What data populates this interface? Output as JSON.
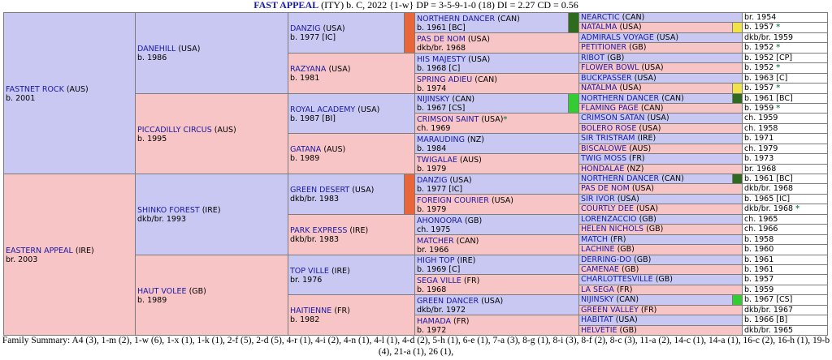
{
  "header": {
    "name": "FAST APPEAL",
    "rest": " (ITY) b. C, 2022 {1-w} DP = 3-5-9-1-0 (18) DI = 2.27   CD = 0.56"
  },
  "gen1": [
    {
      "name": "FASTNET ROCK",
      "country": "(AUS)",
      "info": "b. 2001",
      "sex": "m"
    },
    {
      "name": "EASTERN APPEAL",
      "country": "(IRE)",
      "info": "br. 2003",
      "sex": "f"
    }
  ],
  "gen2": [
    {
      "name": "DANEHILL",
      "country": "(USA)",
      "info": "b. 1986",
      "sex": "m"
    },
    {
      "name": "PICCADILLY CIRCUS",
      "country": "(AUS)",
      "info": "b. 1995",
      "sex": "f"
    },
    {
      "name": "SHINKO FOREST",
      "country": "(IRE)",
      "info": "dkb/br. 1993",
      "sex": "m"
    },
    {
      "name": "HAUT VOLEE",
      "country": "(GB)",
      "info": "b. 1989",
      "sex": "f"
    }
  ],
  "gen3": [
    {
      "name": "DANZIG",
      "country": "(USA)",
      "info": "b. 1977 [IC]",
      "sex": "m"
    },
    {
      "name": "RAZYANA",
      "country": "(USA)",
      "info": "b. 1981",
      "sex": "f"
    },
    {
      "name": "ROYAL ACADEMY",
      "country": "(USA)",
      "info": "b. 1987 [BI]",
      "sex": "m"
    },
    {
      "name": "GATANA",
      "country": "(AUS)",
      "info": "b. 1989",
      "sex": "f"
    },
    {
      "name": "GREEN DESERT",
      "country": "(USA)",
      "info": "dkb/br. 1983",
      "sex": "m"
    },
    {
      "name": "PARK EXPRESS",
      "country": "(IRE)",
      "info": "dkb/br. 1983",
      "sex": "f"
    },
    {
      "name": "TOP VILLE",
      "country": "(IRE)",
      "info": "br. 1976",
      "sex": "m"
    },
    {
      "name": "HAITIENNE",
      "country": "(FR)",
      "info": "b. 1982",
      "sex": "f"
    }
  ],
  "gen4": [
    {
      "name": "NORTHERN DANCER",
      "country": "(CAN)",
      "info": "b. 1961 [BC]",
      "sex": "m"
    },
    {
      "name": "PAS DE NOM",
      "country": "(USA)",
      "info": "dkb/br. 1968",
      "sex": "f"
    },
    {
      "name": "HIS MAJESTY",
      "country": "(USA)",
      "info": "b. 1968 [C]",
      "sex": "m"
    },
    {
      "name": "SPRING ADIEU",
      "country": "(CAN)",
      "info": "b. 1974",
      "sex": "f"
    },
    {
      "name": "NIJINSKY",
      "country": "(CAN)",
      "info": "b. 1967 [CS]",
      "sex": "m"
    },
    {
      "name": "CRIMSON SAINT",
      "country": "(USA)",
      "info": "ch. 1969",
      "sex": "f",
      "star": "*"
    },
    {
      "name": "MARAUDING",
      "country": "(NZ)",
      "info": "b. 1984",
      "sex": "m"
    },
    {
      "name": "TWIGALAE",
      "country": "(AUS)",
      "info": "b. 1979",
      "sex": "f"
    },
    {
      "name": "DANZIG",
      "country": "(USA)",
      "info": "b. 1977 [IC]",
      "sex": "m"
    },
    {
      "name": "FOREIGN COURIER",
      "country": "(USA)",
      "info": "b. 1979",
      "sex": "f"
    },
    {
      "name": "AHONOORA",
      "country": "(GB)",
      "info": "ch. 1975",
      "sex": "m"
    },
    {
      "name": "MATCHER",
      "country": "(CAN)",
      "info": "br. 1966",
      "sex": "f"
    },
    {
      "name": "HIGH TOP",
      "country": "(IRE)",
      "info": "b. 1969 [C]",
      "sex": "m"
    },
    {
      "name": "SEGA VILLE",
      "country": "(FR)",
      "info": "b. 1968",
      "sex": "f"
    },
    {
      "name": "GREEN DANCER",
      "country": "(USA)",
      "info": "dkb/br. 1972",
      "sex": "m"
    },
    {
      "name": "HAMADA",
      "country": "(FR)",
      "info": "b. 1972",
      "sex": "f"
    }
  ],
  "gen5": [
    {
      "name": "NEARCTIC",
      "country": "(CAN)",
      "info": "br. 1954",
      "sex": "m"
    },
    {
      "name": "NATALMA",
      "country": "(USA)",
      "info": "b. 1957",
      "sex": "f",
      "star": "*"
    },
    {
      "name": "ADMIRALS VOYAGE",
      "country": "(USA)",
      "info": "dkb/br. 1959",
      "sex": "m"
    },
    {
      "name": "PETITIONER",
      "country": "(GB)",
      "info": "b. 1952",
      "sex": "f",
      "star": "*"
    },
    {
      "name": "RIBOT",
      "country": "(GB)",
      "info": "b. 1952 [CP]",
      "sex": "m"
    },
    {
      "name": "FLOWER BOWL",
      "country": "(USA)",
      "info": "b. 1952",
      "sex": "f",
      "star": "*"
    },
    {
      "name": "BUCKPASSER",
      "country": "(USA)",
      "info": "b. 1963 [C]",
      "sex": "m"
    },
    {
      "name": "NATALMA",
      "country": "(USA)",
      "info": "b. 1957",
      "sex": "f",
      "star": "*"
    },
    {
      "name": "NORTHERN DANCER",
      "country": "(CAN)",
      "info": "b. 1961 [BC]",
      "sex": "m"
    },
    {
      "name": "FLAMING PAGE",
      "country": "(CAN)",
      "info": "b. 1959",
      "sex": "f",
      "star": "*"
    },
    {
      "name": "CRIMSON SATAN",
      "country": "(USA)",
      "info": "ch. 1959",
      "sex": "m"
    },
    {
      "name": "BOLERO ROSE",
      "country": "(USA)",
      "info": "ch. 1958",
      "sex": "f"
    },
    {
      "name": "SIR TRISTRAM",
      "country": "(IRE)",
      "info": "b. 1971",
      "sex": "m"
    },
    {
      "name": "BISCALOWE",
      "country": "(AUS)",
      "info": "ch. 1979",
      "sex": "f"
    },
    {
      "name": "TWIG MOSS",
      "country": "(FR)",
      "info": "b. 1973",
      "sex": "m"
    },
    {
      "name": "HONDALAE",
      "country": "(NZ)",
      "info": "br. 1968",
      "sex": "f"
    },
    {
      "name": "NORTHERN DANCER",
      "country": "(CAN)",
      "info": "b. 1961 [BC]",
      "sex": "m"
    },
    {
      "name": "PAS DE NOM",
      "country": "(USA)",
      "info": "dkb/br. 1968",
      "sex": "f"
    },
    {
      "name": "SIR IVOR",
      "country": "(USA)",
      "info": "b. 1965 [IC]",
      "sex": "m"
    },
    {
      "name": "COURTLY DEE",
      "country": "(USA)",
      "info": "dkb/br. 1968",
      "sex": "f",
      "star": "*"
    },
    {
      "name": "LORENZACCIO",
      "country": "(GB)",
      "info": "ch. 1965",
      "sex": "m"
    },
    {
      "name": "HELEN NICHOLS",
      "country": "(GB)",
      "info": "ch. 1966",
      "sex": "f"
    },
    {
      "name": "MATCH",
      "country": "(FR)",
      "info": "b. 1958",
      "sex": "m"
    },
    {
      "name": "LACHINE",
      "country": "(GB)",
      "info": "b. 1960",
      "sex": "f"
    },
    {
      "name": "DERRING-DO",
      "country": "(GB)",
      "info": "b. 1961",
      "sex": "m"
    },
    {
      "name": "CAMENAE",
      "country": "(GB)",
      "info": "b. 1961",
      "sex": "f"
    },
    {
      "name": "CHARLOTTESVILLE",
      "country": "(GB)",
      "info": "b. 1957",
      "sex": "m"
    },
    {
      "name": "LA SEGA",
      "country": "(FR)",
      "info": "b. 1959",
      "sex": "f"
    },
    {
      "name": "NIJINSKY",
      "country": "(CAN)",
      "info": "b. 1967 [CS]",
      "sex": "m"
    },
    {
      "name": "GREEN VALLEY",
      "country": "(FR)",
      "info": "dkb/br. 1967",
      "sex": "f"
    },
    {
      "name": "HABITAT",
      "country": "(USA)",
      "info": "b. 1966 [B]",
      "sex": "m"
    },
    {
      "name": "HELVETIE",
      "country": "(GB)",
      "info": "dkb/br. 1965",
      "sex": "f"
    }
  ],
  "bars": [
    {
      "gen": 3,
      "row": 0,
      "color": "#e8663a"
    },
    {
      "gen": 4,
      "row": 0,
      "color": "#2f6b1f"
    },
    {
      "gen": 4,
      "row": 4,
      "color": "#33cc33"
    },
    {
      "gen": 3,
      "row": 4,
      "color": "#e8663a"
    },
    {
      "gen": 5,
      "row": 1,
      "color": "#f2e24a"
    },
    {
      "gen": 5,
      "row": 7,
      "color": "#f2e24a"
    },
    {
      "gen": 5,
      "row": 8,
      "color": "#2f6b1f"
    },
    {
      "gen": 5,
      "row": 16,
      "color": "#2f6b1f"
    },
    {
      "gen": 5,
      "row": 28,
      "color": "#33cc33"
    }
  ],
  "family_summary": "Family Summary: A4 (3), 1-m (2), 1-w (6), 1-x (1), 1-k (1), 2-f (5), 2-d (5), 4-r (1), 4-i (2), 4-n (1), 4-l (1), 4-d (2), 5-h (1), 6-e (1), 7-a (3), 8-g (1), 8-i (3), 8-f (2), 8-c (3), 11-a (2), 14-c (1), 14-a (1), 16-c (2), 16-h (1), 19-b (4), 21-a (1), 26 (1),"
}
